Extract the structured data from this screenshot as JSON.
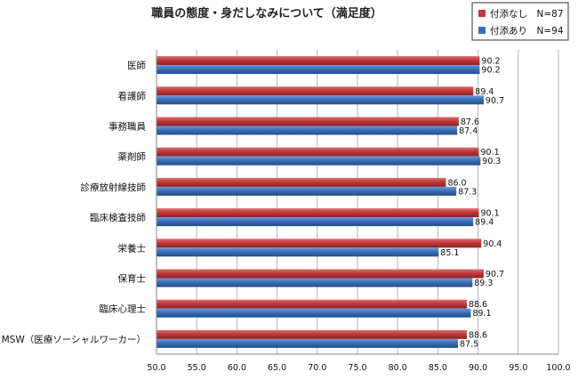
{
  "chart_data": {
    "type": "bar",
    "orientation": "horizontal",
    "title": "職員の態度・身だしなみについて（満足度）",
    "categories": [
      "医師",
      "看護師",
      "事務職員",
      "薬剤師",
      "診療放射線技師",
      "臨床検査技師",
      "栄養士",
      "保育士",
      "臨床心理士",
      "MSW（医療ソーシャルワーカー）"
    ],
    "series": [
      {
        "name": "付添なし　N=87",
        "color": "#c0383a",
        "values": [
          90.2,
          89.4,
          87.6,
          90.1,
          86.0,
          90.1,
          90.4,
          90.7,
          88.6,
          88.6
        ]
      },
      {
        "name": "付添あり　N=94",
        "color": "#3a6fb8",
        "values": [
          90.2,
          90.7,
          87.4,
          90.3,
          87.3,
          89.4,
          85.1,
          89.3,
          89.1,
          87.5
        ]
      }
    ],
    "value_labels": [
      [
        "90.2",
        "89.4",
        "87.6",
        "90.1",
        "86.0",
        "90.1",
        "90.4",
        "90.7",
        "88.6",
        "88.6"
      ],
      [
        "90.2",
        "90.7",
        "87.4",
        "90.3",
        "87.3",
        "89.4",
        "85.1",
        "89.3",
        "89.1",
        "87.5"
      ]
    ],
    "xlim": [
      50,
      100
    ],
    "xticks": [
      "50.0",
      "55.0",
      "60.0",
      "65.0",
      "70.0",
      "75.0",
      "80.0",
      "85.0",
      "90.0",
      "95.0",
      "100.0"
    ],
    "grid": true,
    "legend_position": "top-right"
  }
}
